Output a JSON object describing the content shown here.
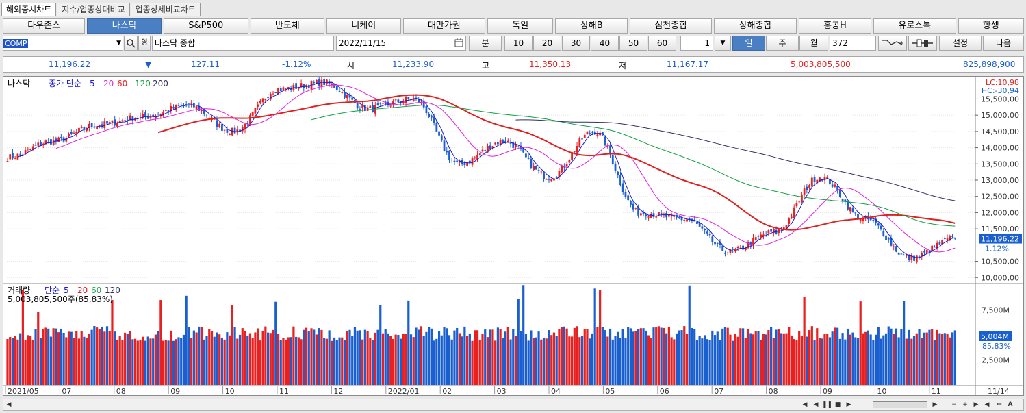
{
  "tabs": [
    "해외증시차트",
    "지수/업종상대비교",
    "업종상세비교차트"
  ],
  "markets": [
    "다우존스",
    "나스닥",
    "S&P500",
    "반도체",
    "니케이",
    "대만가권",
    "독일",
    "상해B",
    "심천종합",
    "상해종합",
    "홍콩H",
    "유로스톡",
    "항셍"
  ],
  "active_market": 1,
  "controls": {
    "code": "COMP",
    "name": "나스닥 종합",
    "search_icon": "magnifier-icon",
    "date": "2022/11/15",
    "calendar_icon": "calendar-icon",
    "minute_label": "분",
    "periods": [
      "10",
      "20",
      "30",
      "40",
      "50",
      "60"
    ],
    "count_unit": "1",
    "day": "일",
    "week": "주",
    "month": "월",
    "bars": "372",
    "settings": "설정",
    "next": "다음"
  },
  "quote": {
    "last": "11,196.22",
    "arrow": "▼",
    "change": "127.11",
    "pct": "-1.12%",
    "open_label": "시",
    "open": "11,233.90",
    "high_label": "고",
    "high": "11,350.13",
    "low_label": "저",
    "low": "11,167.17",
    "volume": "5,003,805,500",
    "amount": "825,898,900"
  },
  "price_panel": {
    "title": "나스닥",
    "ma_label": "종가 단순",
    "ma_periods": [
      "5",
      "20",
      "60",
      "120",
      "200"
    ],
    "ma_colors": [
      "#1a1ad0",
      "#e020e0",
      "#e02020",
      "#10a040",
      "#303060"
    ],
    "lc": "LC:10,98",
    "hc": "HC:-30,94",
    "y_ticks": [
      "15,500,00",
      "15,000,00",
      "14,500,00",
      "14,000,00",
      "13,500,00",
      "13,000,00",
      "12,500,00",
      "12,000,00",
      "11,500,00",
      "10,500,00",
      "10,000,00"
    ],
    "last_tag": "11,196,22",
    "pct_tag": "-1.12%"
  },
  "volume_panel": {
    "title": "거래량",
    "ma_label": "단순",
    "ma_periods": [
      "5",
      "20",
      "60",
      "120"
    ],
    "ma_colors": [
      "#1a1ad0",
      "#e02020",
      "#10a040",
      "#303060"
    ],
    "summary": "5,003,805,500주(85,83%)",
    "y_ticks": [
      "7,500M",
      "2,500M"
    ],
    "last_tag": "5,004M",
    "pct_tag": "85,83%"
  },
  "x_labels": [
    "2021/05",
    "07",
    "08",
    "09",
    "10",
    "11",
    "12",
    "2022/01",
    "02",
    "03",
    "04",
    "05",
    "06",
    "07",
    "08",
    "09",
    "10",
    "11"
  ],
  "x_last": "11/14",
  "colors": {
    "up": "#e82020",
    "down": "#1a5fd0",
    "accent": "#4a7fc4"
  },
  "chart_data": {
    "type": "candlestick",
    "title": "나스닥",
    "anchors": [
      {
        "date": "2021/05",
        "close": 13700
      },
      {
        "date": "2021/06",
        "close": 14200
      },
      {
        "date": "2021/07",
        "close": 14700
      },
      {
        "date": "2021/08",
        "close": 14950
      },
      {
        "date": "2021/09",
        "close": 15300
      },
      {
        "date": "2021/10",
        "close": 14500
      },
      {
        "date": "2021/11",
        "close": 15800
      },
      {
        "date": "2021/11 late",
        "close": 16000
      },
      {
        "date": "2021/12",
        "close": 15200
      },
      {
        "date": "2022/01",
        "close": 15500
      },
      {
        "date": "2022/01 late",
        "close": 13500
      },
      {
        "date": "2022/02",
        "close": 14200
      },
      {
        "date": "2022/03",
        "close": 13100
      },
      {
        "date": "2022/04",
        "close": 14500
      },
      {
        "date": "2022/05",
        "close": 12000
      },
      {
        "date": "2022/06",
        "close": 11800
      },
      {
        "date": "2022/06 mid",
        "close": 10800
      },
      {
        "date": "2022/07",
        "close": 11400
      },
      {
        "date": "2022/08",
        "close": 13100
      },
      {
        "date": "2022/09",
        "close": 11800
      },
      {
        "date": "2022/10",
        "close": 10600
      },
      {
        "date": "2022/11/15",
        "close": 11196.22
      }
    ],
    "ylim": [
      9900,
      16100
    ],
    "volume_ylim": [
      0,
      10000
    ]
  }
}
